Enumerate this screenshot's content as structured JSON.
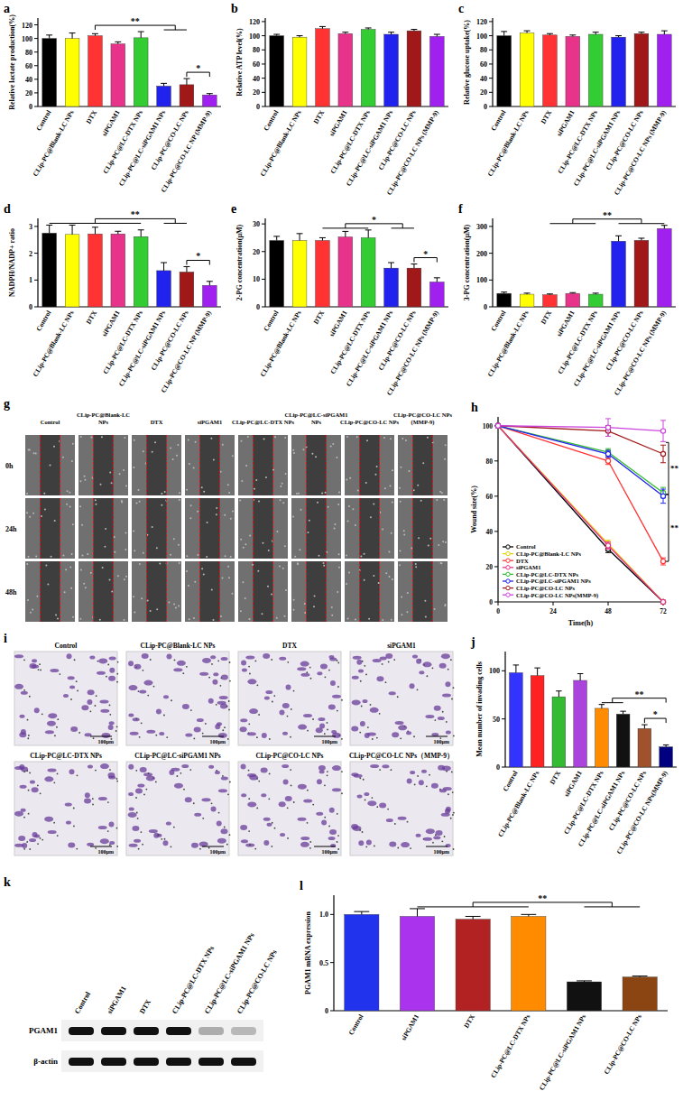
{
  "chart_data": [
    {
      "type": "bar",
      "title": "a",
      "y_label": "Relative lactate production(%)",
      "categories": [
        "Control",
        "CLip-PC@Blank-LC NPs",
        "DTX",
        "siPGAM1",
        "CLip-PC@LC-DTX NPs",
        "CLip-PC@LC-siPGAM1 NPs",
        "CLip-PC@CO-LC NPs",
        "CLip-PC@CO-LC NP (MMP-9)"
      ],
      "values": [
        100,
        100,
        104,
        92,
        101,
        30,
        32,
        17
      ],
      "errors": [
        5,
        8,
        3,
        3,
        9,
        4,
        9,
        2
      ],
      "colors": [
        "#000000",
        "#ffff00",
        "#ff3333",
        "#e8338a",
        "#33cc33",
        "#2222ee",
        "#a01818",
        "#a020f0"
      ],
      "ylim": [
        0,
        130
      ],
      "yticks": [
        0,
        20,
        40,
        60,
        80,
        100,
        120
      ],
      "annotations": [
        {
          "text": "**",
          "from": [
            2
          ],
          "to": [
            5,
            6
          ]
        },
        {
          "text": "*",
          "from": [
            6
          ],
          "to": [
            7
          ]
        }
      ]
    },
    {
      "type": "bar",
      "title": "b",
      "y_label": "Relative ATP level(%)",
      "categories": [
        "Control",
        "CLip-PC@Blank-LC NPs",
        "DTX",
        "siPGAM1",
        "CLip-PC@LC-DTX NPs",
        "CLip-PC@LC-siPGAM1 NPs",
        "CLip-PC@CO-LC NPs",
        "CLip-PC@CO-LC NPs (MMP-9)"
      ],
      "values": [
        100,
        98,
        110,
        103,
        109,
        102,
        107,
        99
      ],
      "errors": [
        2,
        2,
        3,
        2,
        2,
        3,
        2,
        3
      ],
      "colors": [
        "#000000",
        "#ffff00",
        "#ff3333",
        "#e8338a",
        "#33cc33",
        "#2222ee",
        "#a01818",
        "#a020f0"
      ],
      "ylim": [
        0,
        125
      ],
      "yticks": [
        0,
        20,
        40,
        60,
        80,
        100,
        120
      ],
      "annotations": []
    },
    {
      "type": "bar",
      "title": "c",
      "y_label": "Relative glucose uptake(%)",
      "categories": [
        "Control",
        "CLip-PC@Blank-LC NPs",
        "DTX",
        "siPGAM1",
        "CLip-PC@LC-DTX NPs",
        "CLip-PC@LC-siPGAM1 NPs",
        "CLip-PC@CO-LC NPs",
        "CLip-PC@CO-LC NPs (MMP-9)"
      ],
      "values": [
        100,
        104,
        101,
        99,
        102,
        98,
        103,
        102
      ],
      "errors": [
        6,
        3,
        2,
        2,
        3,
        2,
        2,
        5
      ],
      "colors": [
        "#000000",
        "#ffff00",
        "#ff3333",
        "#e8338a",
        "#33cc33",
        "#2222ee",
        "#a01818",
        "#a020f0"
      ],
      "ylim": [
        0,
        125
      ],
      "yticks": [
        0,
        20,
        40,
        60,
        80,
        100,
        120
      ],
      "annotations": []
    },
    {
      "type": "bar",
      "title": "d",
      "y_label": "NADPH/NADP+ ratio",
      "categories": [
        "Control",
        "CLip-PC@Blank-LC NPs",
        "DTX",
        "siPGAM1",
        "CLip-PC@LC-DTX NPs",
        "CLip-PC@LC-siPGAM1 NPs",
        "CLip-PC@CO-LC NPs",
        "CLip-PC@CO-LC NP (MMP-9)"
      ],
      "values": [
        2.75,
        2.7,
        2.72,
        2.72,
        2.62,
        1.35,
        1.3,
        0.8
      ],
      "errors": [
        0.3,
        0.35,
        0.25,
        0.1,
        0.25,
        0.3,
        0.2,
        0.15
      ],
      "colors": [
        "#000000",
        "#ffff00",
        "#ff3333",
        "#e8338a",
        "#33cc33",
        "#2222ee",
        "#a01818",
        "#a020f0"
      ],
      "ylim": [
        0,
        3.3
      ],
      "yticks": [
        0,
        1,
        2,
        3
      ],
      "annotations": [
        {
          "text": "**",
          "from": [
            0,
            1,
            2,
            3,
            4
          ],
          "to": [
            5,
            6
          ]
        },
        {
          "text": "*",
          "from": [
            6
          ],
          "to": [
            7
          ]
        }
      ]
    },
    {
      "type": "bar",
      "title": "e",
      "y_label": "2-PG concentration(μM)",
      "categories": [
        "Control",
        "CLip-PC@Blank-LC NPs",
        "DTX",
        "siPGAM1",
        "CLip-PC@LC-DTX NPs",
        "CLip-PC@LC-siPGAM1 NPs",
        "CLip-PC@CO-LC NPs",
        "CLip-PC@CO-LC NPs (MMP-9)"
      ],
      "values": [
        24,
        24,
        24,
        25.3,
        25,
        14,
        14,
        9
      ],
      "errors": [
        1.5,
        2.5,
        1,
        2,
        2.8,
        2,
        1.5,
        1.5
      ],
      "colors": [
        "#000000",
        "#ffff00",
        "#ff3333",
        "#e8338a",
        "#33cc33",
        "#2222ee",
        "#a01818",
        "#a020f0"
      ],
      "ylim": [
        0,
        32
      ],
      "yticks": [
        0,
        10,
        20,
        30
      ],
      "annotations": [
        {
          "text": "*",
          "from": [
            2,
            3,
            4
          ],
          "to": [
            5,
            6
          ]
        },
        {
          "text": "*",
          "from": [
            6
          ],
          "to": [
            7
          ]
        }
      ]
    },
    {
      "type": "bar",
      "title": "f",
      "y_label": "3-PG concentration(μM)",
      "categories": [
        "Control",
        "CLip-PC@Blank-LC NPs",
        "DTX",
        "siPGAM1",
        "CLip-PC@LC-DTX NPs",
        "CLip-PC@LC-siPGAM1 NPs",
        "CLip-PC@CO-LC NPs",
        "CLip-PC@CO-LC NPs (MMP-9)"
      ],
      "values": [
        50,
        47,
        45,
        50,
        47,
        245,
        248,
        292
      ],
      "errors": [
        5,
        4,
        3,
        3,
        4,
        20,
        8,
        12
      ],
      "colors": [
        "#000000",
        "#ffff00",
        "#ff3333",
        "#e8338a",
        "#33cc33",
        "#2222ee",
        "#a01818",
        "#a020f0"
      ],
      "ylim": [
        0,
        330
      ],
      "yticks": [
        0,
        100,
        200,
        300
      ],
      "annotations": [
        {
          "text": "**",
          "from": [
            2,
            3,
            4
          ],
          "to": [
            5,
            6,
            7
          ]
        }
      ]
    },
    {
      "type": "line",
      "title": "h",
      "x_label": "Time(h)",
      "y_label": "Wound size(%)",
      "x": [
        0,
        48,
        72
      ],
      "xlim": [
        0,
        72
      ],
      "xticks": [
        0,
        24,
        48,
        72
      ],
      "ylim": [
        0,
        105
      ],
      "yticks": [
        0,
        20,
        40,
        60,
        80,
        100
      ],
      "marker": "circle",
      "legend": "lower left",
      "series": [
        {
          "name": "Control",
          "color": "#000000",
          "values": [
            100,
            30,
            0
          ],
          "errors": [
            0,
            2,
            0
          ]
        },
        {
          "name": "CLip-PC@Blank-LC NPs",
          "color": "#e6d200",
          "values": [
            100,
            33,
            0
          ],
          "errors": [
            0,
            2,
            0
          ]
        },
        {
          "name": "DTX",
          "color": "#ff3333",
          "values": [
            100,
            80,
            23
          ],
          "errors": [
            0,
            2,
            2
          ]
        },
        {
          "name": "siPGAM1",
          "color": "#e8338a",
          "values": [
            100,
            32,
            0
          ],
          "errors": [
            0,
            2,
            0
          ]
        },
        {
          "name": "CLip-PC@LC-DTX NPs",
          "color": "#33bb33",
          "values": [
            100,
            85,
            62
          ],
          "errors": [
            0,
            2,
            3
          ]
        },
        {
          "name": "CLip-PC@LC-siPGAM1 NPs",
          "color": "#2222ee",
          "values": [
            100,
            84,
            60
          ],
          "errors": [
            0,
            2,
            4
          ]
        },
        {
          "name": "CLip-PC@CO-LC NPs",
          "color": "#a01818",
          "values": [
            100,
            97,
            84
          ],
          "errors": [
            0,
            3,
            5
          ]
        },
        {
          "name": "CLip-PC@CO-LC NPs(MMP-9)",
          "color": "#cc44dd",
          "values": [
            100,
            99,
            97
          ],
          "errors": [
            0,
            5,
            6
          ]
        }
      ],
      "annotations": [
        {
          "text": "**",
          "from": [
            6,
            7
          ],
          "to": [
            4,
            5
          ]
        },
        {
          "text": "**",
          "from": [
            4,
            5
          ],
          "to": [
            2
          ]
        }
      ]
    },
    {
      "type": "bar",
      "title": "j",
      "y_label": "Mean number of invading cells",
      "categories": [
        "Control",
        "CLip-PC@Blank-LC NPs",
        "DTX",
        "siPGAM1",
        "CLip-PC@LC-DTX NPs",
        "CLip-PC@LC-siPGAM1 NPs",
        "CLip-PC@CO-LC NPs",
        "CLip-PC@CO-LC NPs(MMP-9)"
      ],
      "values": [
        98,
        95,
        73,
        90,
        61,
        55,
        40,
        21
      ],
      "errors": [
        8,
        8,
        6,
        7,
        4,
        3,
        4,
        2
      ],
      "colors": [
        "#3333ff",
        "#ff2222",
        "#33bb33",
        "#aa44dd",
        "#ff8c00",
        "#111111",
        "#a0522d",
        "#000080"
      ],
      "ylim": [
        0,
        120
      ],
      "yticks": [
        0,
        50,
        100
      ],
      "annotations": [
        {
          "text": "**",
          "from": [
            4,
            5
          ],
          "to": [
            7
          ]
        },
        {
          "text": "*",
          "from": [
            6
          ],
          "to": [
            7
          ]
        }
      ]
    },
    {
      "type": "blot",
      "title": "k",
      "categories": [
        "Control",
        "siPGAM1",
        "DTX",
        "CLip-PC@LC-DTX NPs",
        "CLip-PC@LC-siPGAM1 NPs",
        "CLip-PC@CO-LC NPs"
      ],
      "rows": [
        {
          "name": "PGAM1",
          "values": [
            1,
            1,
            1,
            1,
            0.3,
            0.25
          ]
        },
        {
          "name": "β-actin",
          "values": [
            1,
            1,
            1,
            1,
            1,
            1
          ]
        }
      ]
    },
    {
      "type": "bar",
      "title": "l",
      "y_label": "PGAM1 mRNA expression",
      "categories": [
        "Control",
        "siPGAM1",
        "DTX",
        "CLip-PC@LC-DTX NPs",
        "CLip-PC@LC-siPGAM1 NPs",
        "CLip-PC@CO-LC NPs"
      ],
      "values": [
        1.0,
        0.98,
        0.95,
        0.98,
        0.3,
        0.35
      ],
      "errors": [
        0.03,
        0.08,
        0.03,
        0.02,
        0.01,
        0.01
      ],
      "colors": [
        "#2233ee",
        "#aa33ee",
        "#b22222",
        "#ff8c00",
        "#111111",
        "#8b4513"
      ],
      "ylim": [
        0,
        1.2
      ],
      "yticks": [
        0,
        0.5,
        {
          "value": 1,
          "label": "1.0"
        }
      ],
      "annotations": [
        {
          "text": "**",
          "from": [
            1,
            2,
            3
          ],
          "to": [
            4,
            5
          ]
        }
      ]
    }
  ],
  "images": [
    {
      "title": "g",
      "columns": [
        "Control",
        "CLip-PC@Blank-LC NPs",
        "DTX",
        "siPGAM1",
        "CLip-PC@LC-DTX NPs",
        "CLip-PC@LC-siPGAM1 NPs",
        "CLip-PC@CO-LC NPs",
        "CLip-PC@CO-LC NPs (MMP-9)"
      ],
      "rows": [
        "0h",
        "24h",
        "48h"
      ]
    },
    {
      "title": "i",
      "panels": [
        "Control",
        "CLip-PC@Blank-LC NPs",
        "DTX",
        "siPGAM1",
        "CLip-PC@LC-DTX NPs",
        "CLip-PC@LC-siPGAM1 NPs",
        "CLip-PC@CO-LC NPs",
        "CLip-PC@CO-LC NPs（MMP-9）"
      ],
      "scale_bar": "100μm"
    }
  ]
}
